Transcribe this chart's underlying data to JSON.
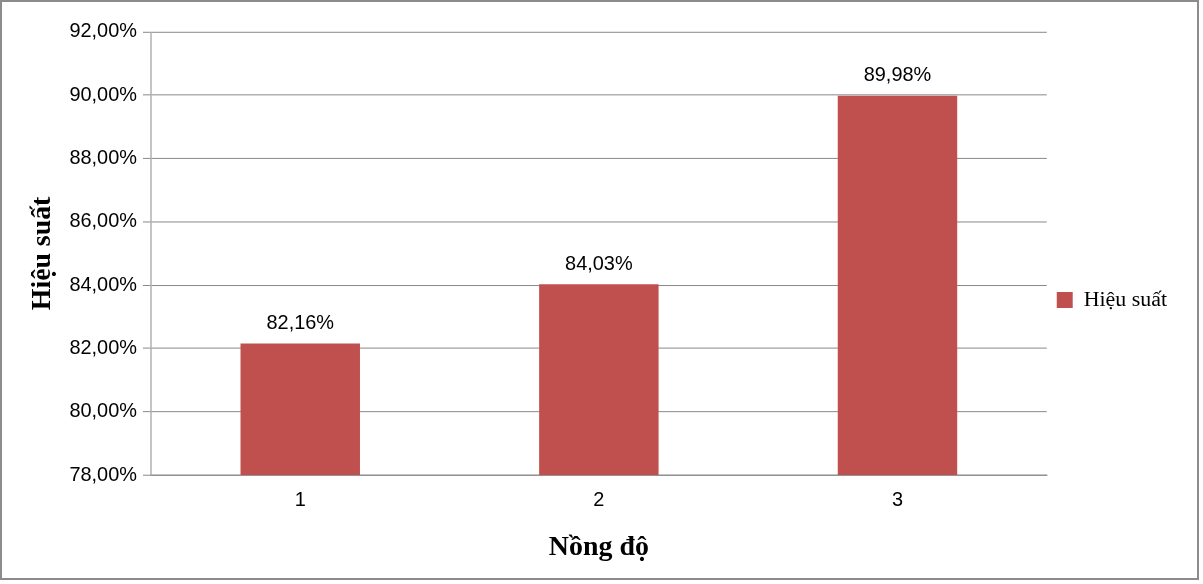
{
  "chart_data": {
    "type": "bar",
    "xlabel": "Nồng độ",
    "ylabel": "Hiệu suất",
    "categories": [
      "1",
      "2",
      "3"
    ],
    "series": [
      {
        "name": "Hiệu suất",
        "color": "#c0504d",
        "values": [
          82.16,
          84.03,
          89.98
        ],
        "value_labels": [
          "82,16%",
          "84,03%",
          "89,98%"
        ]
      }
    ],
    "ylim": [
      78,
      92
    ],
    "yticks": [
      {
        "value": 78,
        "label": "78,00%"
      },
      {
        "value": 80,
        "label": "80,00%"
      },
      {
        "value": 82,
        "label": "82,00%"
      },
      {
        "value": 84,
        "label": "84,00%"
      },
      {
        "value": 86,
        "label": "86,00%"
      },
      {
        "value": 88,
        "label": "88,00%"
      },
      {
        "value": 90,
        "label": "90,00%"
      },
      {
        "value": 92,
        "label": "92,00%"
      }
    ],
    "grid": "y",
    "legend": "right"
  }
}
